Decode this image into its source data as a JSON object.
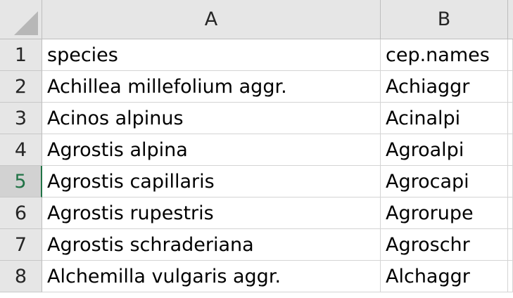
{
  "columns": [
    "A",
    "B"
  ],
  "rows": [
    {
      "num": "1",
      "a": "species",
      "b": "cep.names"
    },
    {
      "num": "2",
      "a": "Achillea millefolium aggr.",
      "b": "Achiaggr"
    },
    {
      "num": "3",
      "a": "Acinos alpinus",
      "b": "Acinalpi"
    },
    {
      "num": "4",
      "a": "Agrostis alpina",
      "b": "Agroalpi"
    },
    {
      "num": "5",
      "a": "Agrostis capillaris",
      "b": "Agrocapi"
    },
    {
      "num": "6",
      "a": "Agrostis rupestris",
      "b": "Agrorupe"
    },
    {
      "num": "7",
      "a": "Agrostis schraderiana",
      "b": "Agroschr"
    },
    {
      "num": "8",
      "a": "Alchemilla vulgaris aggr.",
      "b": "Alchaggr"
    }
  ],
  "active_row": "5",
  "colors": {
    "header_bg": "#e6e6e6",
    "active_accent": "#217346",
    "grid_line": "#d4d4d4"
  }
}
